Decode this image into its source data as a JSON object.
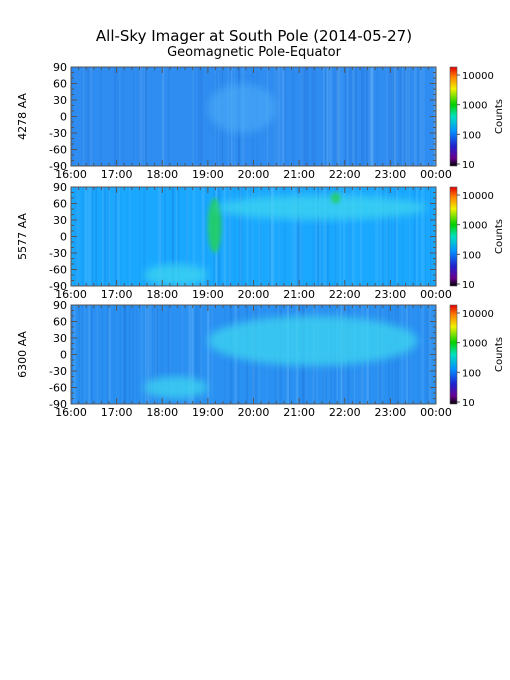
{
  "title": "All-Sky Imager at South Pole (2014-05-27)",
  "subtitle": "Geomagnetic Pole-Equator",
  "chart_data": {
    "type": "heatmap",
    "title": "All-Sky Imager at South Pole (2014-05-27)",
    "subtitle": "Geomagnetic Pole-Equator",
    "x_ticks": [
      "16:00",
      "17:00",
      "18:00",
      "19:00",
      "20:00",
      "21:00",
      "22:00",
      "23:00",
      "00:00"
    ],
    "y_ticks": [
      90,
      60,
      30,
      0,
      -30,
      -60,
      -90
    ],
    "ylim": [
      -90,
      90
    ],
    "colorbar": {
      "label": "Counts",
      "scale": "log",
      "ticks": [
        "10000",
        "1000",
        "100",
        "10"
      ]
    },
    "panels": [
      {
        "ylabel": "4278 AA",
        "base_color": "#2f8cf0",
        "features": [
          {
            "x": [
              19.0,
              20.5
            ],
            "y": [
              -30,
              60
            ],
            "level": "slightly enhanced"
          }
        ]
      },
      {
        "ylabel": "5577 AA",
        "base_color": "#1aa8ff",
        "features": [
          {
            "x": [
              17.6,
              19.0
            ],
            "y": [
              -90,
              -50
            ],
            "level": "enhanced"
          },
          {
            "x": [
              19.0,
              19.3
            ],
            "y": [
              -30,
              70
            ],
            "level": "bright"
          },
          {
            "x": [
              19.2,
              23.8
            ],
            "y": [
              30,
              75
            ],
            "level": "enhanced"
          },
          {
            "x": [
              21.7,
              21.9
            ],
            "y": [
              60,
              80
            ],
            "level": "bright"
          }
        ]
      },
      {
        "ylabel": "6300 AA",
        "base_color": "#2a90f2",
        "features": [
          {
            "x": [
              17.6,
              19.0
            ],
            "y": [
              -80,
              -40
            ],
            "level": "enhanced"
          },
          {
            "x": [
              19.0,
              23.6
            ],
            "y": [
              -20,
              70
            ],
            "level": "enhanced"
          }
        ]
      }
    ]
  }
}
